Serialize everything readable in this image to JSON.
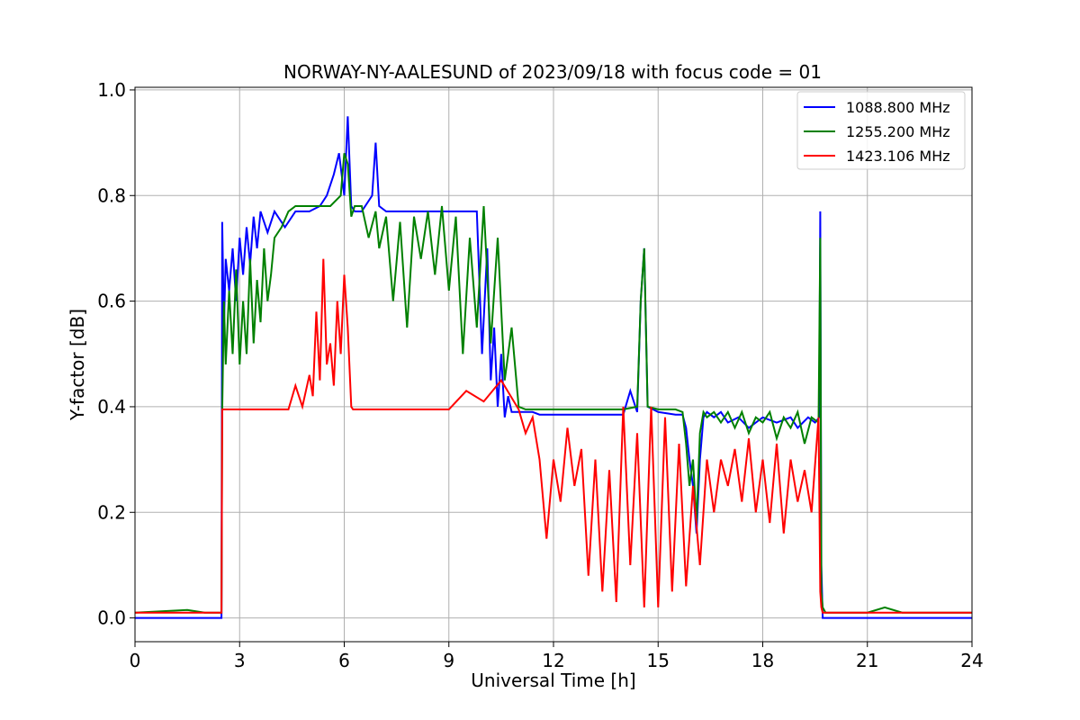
{
  "chart_data": {
    "type": "line",
    "title": "NORWAY-NY-AALESUND of 2023/09/18 with focus code = 01",
    "xlabel": "Universal Time [h]",
    "ylabel": "Y-factor [dB]",
    "xlim": [
      0,
      24
    ],
    "ylim": [
      -0.045,
      1.005
    ],
    "xticks": [
      0,
      3,
      6,
      9,
      12,
      15,
      18,
      21,
      24
    ],
    "xtick_labels": [
      "0",
      "3",
      "6",
      "9",
      "12",
      "15",
      "18",
      "21",
      "24"
    ],
    "yticks": [
      0.0,
      0.2,
      0.4,
      0.6,
      0.8,
      1.0
    ],
    "ytick_labels": [
      "0.0",
      "0.2",
      "0.4",
      "0.6",
      "0.8",
      "1.0"
    ],
    "grid": true,
    "legend_position": "top-right",
    "series": [
      {
        "name": "1088.800 MHz",
        "color": "#0000ff",
        "x": [
          0,
          2.48,
          2.5,
          2.55,
          2.6,
          2.7,
          2.8,
          2.9,
          3.0,
          3.1,
          3.2,
          3.3,
          3.4,
          3.5,
          3.6,
          3.8,
          4.0,
          4.3,
          4.6,
          5.0,
          5.3,
          5.5,
          5.7,
          5.85,
          6.0,
          6.1,
          6.2,
          6.3,
          6.5,
          6.8,
          6.9,
          7.0,
          7.2,
          7.5,
          8.0,
          8.5,
          9.0,
          9.5,
          9.8,
          9.95,
          10.1,
          10.2,
          10.3,
          10.4,
          10.5,
          10.6,
          10.7,
          10.8,
          11.0,
          11.2,
          11.4,
          11.6,
          11.8,
          12.5,
          13.0,
          13.5,
          14.0,
          14.2,
          14.4,
          14.5,
          14.6,
          14.7,
          15.0,
          15.5,
          15.7,
          15.8,
          15.9,
          16.0,
          16.1,
          16.2,
          16.3,
          16.4,
          16.6,
          16.8,
          17.0,
          17.3,
          17.6,
          18.0,
          18.4,
          18.8,
          19.0,
          19.3,
          19.5,
          19.62,
          19.65,
          19.68,
          19.72,
          19.8,
          20.0,
          21.0,
          22.0,
          23.0,
          24.0
        ],
        "y": [
          0.0,
          0.0,
          0.75,
          0.55,
          0.68,
          0.62,
          0.7,
          0.6,
          0.72,
          0.65,
          0.74,
          0.67,
          0.76,
          0.7,
          0.77,
          0.73,
          0.77,
          0.74,
          0.77,
          0.77,
          0.78,
          0.8,
          0.84,
          0.88,
          0.8,
          0.95,
          0.78,
          0.77,
          0.77,
          0.8,
          0.9,
          0.78,
          0.77,
          0.77,
          0.77,
          0.77,
          0.77,
          0.77,
          0.77,
          0.5,
          0.7,
          0.45,
          0.55,
          0.4,
          0.5,
          0.38,
          0.42,
          0.39,
          0.39,
          0.39,
          0.39,
          0.385,
          0.385,
          0.385,
          0.385,
          0.385,
          0.385,
          0.43,
          0.39,
          0.6,
          0.7,
          0.4,
          0.39,
          0.385,
          0.385,
          0.36,
          0.3,
          0.25,
          0.16,
          0.3,
          0.38,
          0.39,
          0.38,
          0.39,
          0.37,
          0.38,
          0.36,
          0.38,
          0.37,
          0.38,
          0.36,
          0.38,
          0.37,
          0.38,
          0.77,
          0.1,
          0.0,
          0.0,
          0.0,
          0.0,
          0.0,
          0.0,
          0.0
        ]
      },
      {
        "name": "1255.200 MHz",
        "color": "#008000",
        "x": [
          0,
          1.5,
          2.0,
          2.48,
          2.5,
          2.55,
          2.6,
          2.7,
          2.8,
          2.9,
          3.0,
          3.1,
          3.2,
          3.3,
          3.4,
          3.5,
          3.6,
          3.7,
          3.8,
          3.9,
          4.0,
          4.2,
          4.4,
          4.6,
          4.8,
          5.0,
          5.3,
          5.6,
          5.9,
          6.0,
          6.1,
          6.2,
          6.3,
          6.5,
          6.7,
          6.9,
          7.0,
          7.2,
          7.4,
          7.6,
          7.8,
          8.0,
          8.2,
          8.4,
          8.6,
          8.8,
          9.0,
          9.2,
          9.4,
          9.6,
          9.8,
          10.0,
          10.2,
          10.4,
          10.6,
          10.8,
          11.0,
          11.2,
          11.5,
          12.0,
          13.0,
          14.0,
          14.4,
          14.5,
          14.6,
          14.7,
          15.0,
          15.5,
          15.7,
          15.8,
          15.9,
          16.0,
          16.1,
          16.2,
          16.3,
          16.4,
          16.6,
          16.8,
          17.0,
          17.2,
          17.4,
          17.6,
          17.8,
          18.0,
          18.2,
          18.4,
          18.6,
          18.8,
          19.0,
          19.2,
          19.4,
          19.6,
          19.65,
          19.68,
          19.72,
          19.8,
          20.0,
          21.0,
          21.5,
          22.0,
          23.0,
          24.0
        ],
        "y": [
          0.01,
          0.015,
          0.01,
          0.01,
          0.39,
          0.6,
          0.48,
          0.62,
          0.5,
          0.66,
          0.48,
          0.6,
          0.5,
          0.68,
          0.52,
          0.64,
          0.56,
          0.7,
          0.6,
          0.65,
          0.72,
          0.74,
          0.77,
          0.78,
          0.78,
          0.78,
          0.78,
          0.78,
          0.8,
          0.88,
          0.86,
          0.76,
          0.78,
          0.78,
          0.72,
          0.77,
          0.7,
          0.76,
          0.6,
          0.75,
          0.55,
          0.76,
          0.68,
          0.77,
          0.65,
          0.78,
          0.62,
          0.76,
          0.5,
          0.72,
          0.55,
          0.78,
          0.52,
          0.72,
          0.45,
          0.55,
          0.4,
          0.395,
          0.395,
          0.395,
          0.395,
          0.395,
          0.4,
          0.6,
          0.7,
          0.4,
          0.395,
          0.395,
          0.39,
          0.33,
          0.25,
          0.3,
          0.18,
          0.35,
          0.39,
          0.38,
          0.39,
          0.37,
          0.39,
          0.36,
          0.39,
          0.35,
          0.38,
          0.37,
          0.39,
          0.34,
          0.38,
          0.36,
          0.39,
          0.33,
          0.38,
          0.37,
          0.72,
          0.05,
          0.02,
          0.01,
          0.01,
          0.01,
          0.02,
          0.01,
          0.01,
          0.01
        ]
      },
      {
        "name": "1423.106 MHz",
        "color": "#ff0000",
        "x": [
          0,
          0.5,
          1.0,
          2.48,
          2.5,
          3.0,
          4.0,
          4.4,
          4.6,
          4.8,
          5.0,
          5.1,
          5.2,
          5.3,
          5.4,
          5.5,
          5.6,
          5.7,
          5.8,
          5.9,
          6.0,
          6.1,
          6.2,
          6.25,
          7.0,
          8.0,
          9.0,
          9.5,
          10.0,
          10.5,
          11.0,
          11.2,
          11.4,
          11.6,
          11.8,
          12.0,
          12.2,
          12.4,
          12.6,
          12.8,
          13.0,
          13.2,
          13.4,
          13.6,
          13.8,
          14.0,
          14.2,
          14.4,
          14.6,
          14.8,
          15.0,
          15.2,
          15.4,
          15.6,
          15.8,
          16.0,
          16.2,
          16.4,
          16.6,
          16.8,
          17.0,
          17.2,
          17.4,
          17.6,
          17.8,
          18.0,
          18.2,
          18.4,
          18.6,
          18.8,
          19.0,
          19.2,
          19.4,
          19.6,
          19.65,
          19.68,
          19.72,
          19.8,
          20.0,
          21.0,
          22.0,
          23.0,
          24.0
        ],
        "y": [
          0.01,
          0.01,
          0.01,
          0.01,
          0.395,
          0.395,
          0.395,
          0.395,
          0.44,
          0.4,
          0.46,
          0.42,
          0.58,
          0.45,
          0.68,
          0.48,
          0.52,
          0.44,
          0.6,
          0.5,
          0.65,
          0.55,
          0.4,
          0.395,
          0.395,
          0.395,
          0.395,
          0.43,
          0.41,
          0.45,
          0.395,
          0.35,
          0.38,
          0.3,
          0.15,
          0.3,
          0.22,
          0.36,
          0.25,
          0.32,
          0.08,
          0.3,
          0.05,
          0.28,
          0.03,
          0.4,
          0.1,
          0.35,
          0.02,
          0.4,
          0.02,
          0.38,
          0.05,
          0.33,
          0.06,
          0.25,
          0.1,
          0.3,
          0.2,
          0.3,
          0.25,
          0.32,
          0.22,
          0.34,
          0.2,
          0.3,
          0.18,
          0.33,
          0.16,
          0.3,
          0.22,
          0.28,
          0.2,
          0.38,
          0.05,
          0.02,
          0.01,
          0.01,
          0.01,
          0.01,
          0.01,
          0.01,
          0.01
        ]
      }
    ]
  }
}
